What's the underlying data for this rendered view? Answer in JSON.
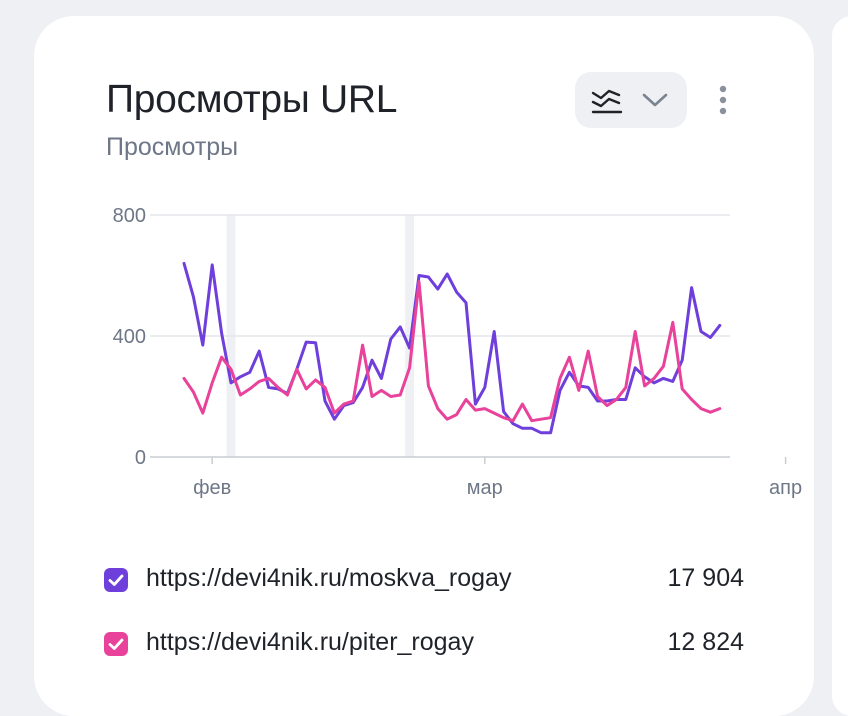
{
  "widget": {
    "title": "Просмотры URL",
    "subtitle": "Просмотры",
    "chart_type_icon": "lines-chart-icon",
    "dropdown_icon": "chevron-down-icon",
    "menu_icon": "more-vertical-icon"
  },
  "legend": [
    {
      "label": "https://devi4nik.ru/moskva_rogay",
      "total": "17 904",
      "color": "#6e3fdb",
      "checked": true
    },
    {
      "label": "https://devi4nik.ru/piter_rogay",
      "total": "12 824",
      "color": "#e8429a",
      "checked": true
    }
  ],
  "chart_data": {
    "type": "line",
    "title": "",
    "xlabel": "",
    "ylabel": "",
    "ylim": [
      0,
      800
    ],
    "y_ticks": [
      "0",
      "400",
      "800"
    ],
    "x_tick_labels": [
      "фев",
      "мар",
      "апр"
    ],
    "grid": true,
    "x_start_date": "2024-01-29",
    "x_tick_days": [
      3,
      32,
      64
    ],
    "highlight_days": [
      5,
      24
    ],
    "series": [
      {
        "name": "https://devi4nik.ru/moskva_rogay",
        "color": "#6e3fdb",
        "values": [
          640,
          530,
          370,
          635,
          410,
          245,
          265,
          280,
          350,
          230,
          225,
          210,
          290,
          380,
          378,
          185,
          125,
          170,
          180,
          230,
          320,
          260,
          390,
          430,
          360,
          600,
          595,
          555,
          605,
          545,
          510,
          175,
          230,
          415,
          150,
          110,
          95,
          95,
          80,
          80,
          220,
          280,
          235,
          230,
          185,
          185,
          190,
          190,
          295,
          265,
          245,
          260,
          250,
          320,
          560,
          415,
          395,
          435
        ]
      },
      {
        "name": "https://devi4nik.ru/piter_rogay",
        "color": "#e8429a",
        "values": [
          260,
          215,
          145,
          245,
          330,
          290,
          205,
          225,
          250,
          260,
          230,
          205,
          290,
          225,
          255,
          230,
          145,
          175,
          185,
          370,
          200,
          220,
          200,
          205,
          295,
          580,
          235,
          160,
          125,
          140,
          190,
          155,
          160,
          145,
          130,
          120,
          175,
          120,
          125,
          130,
          260,
          330,
          220,
          350,
          200,
          170,
          190,
          230,
          415,
          235,
          260,
          300,
          445,
          225,
          190,
          160,
          148,
          160
        ]
      }
    ]
  }
}
